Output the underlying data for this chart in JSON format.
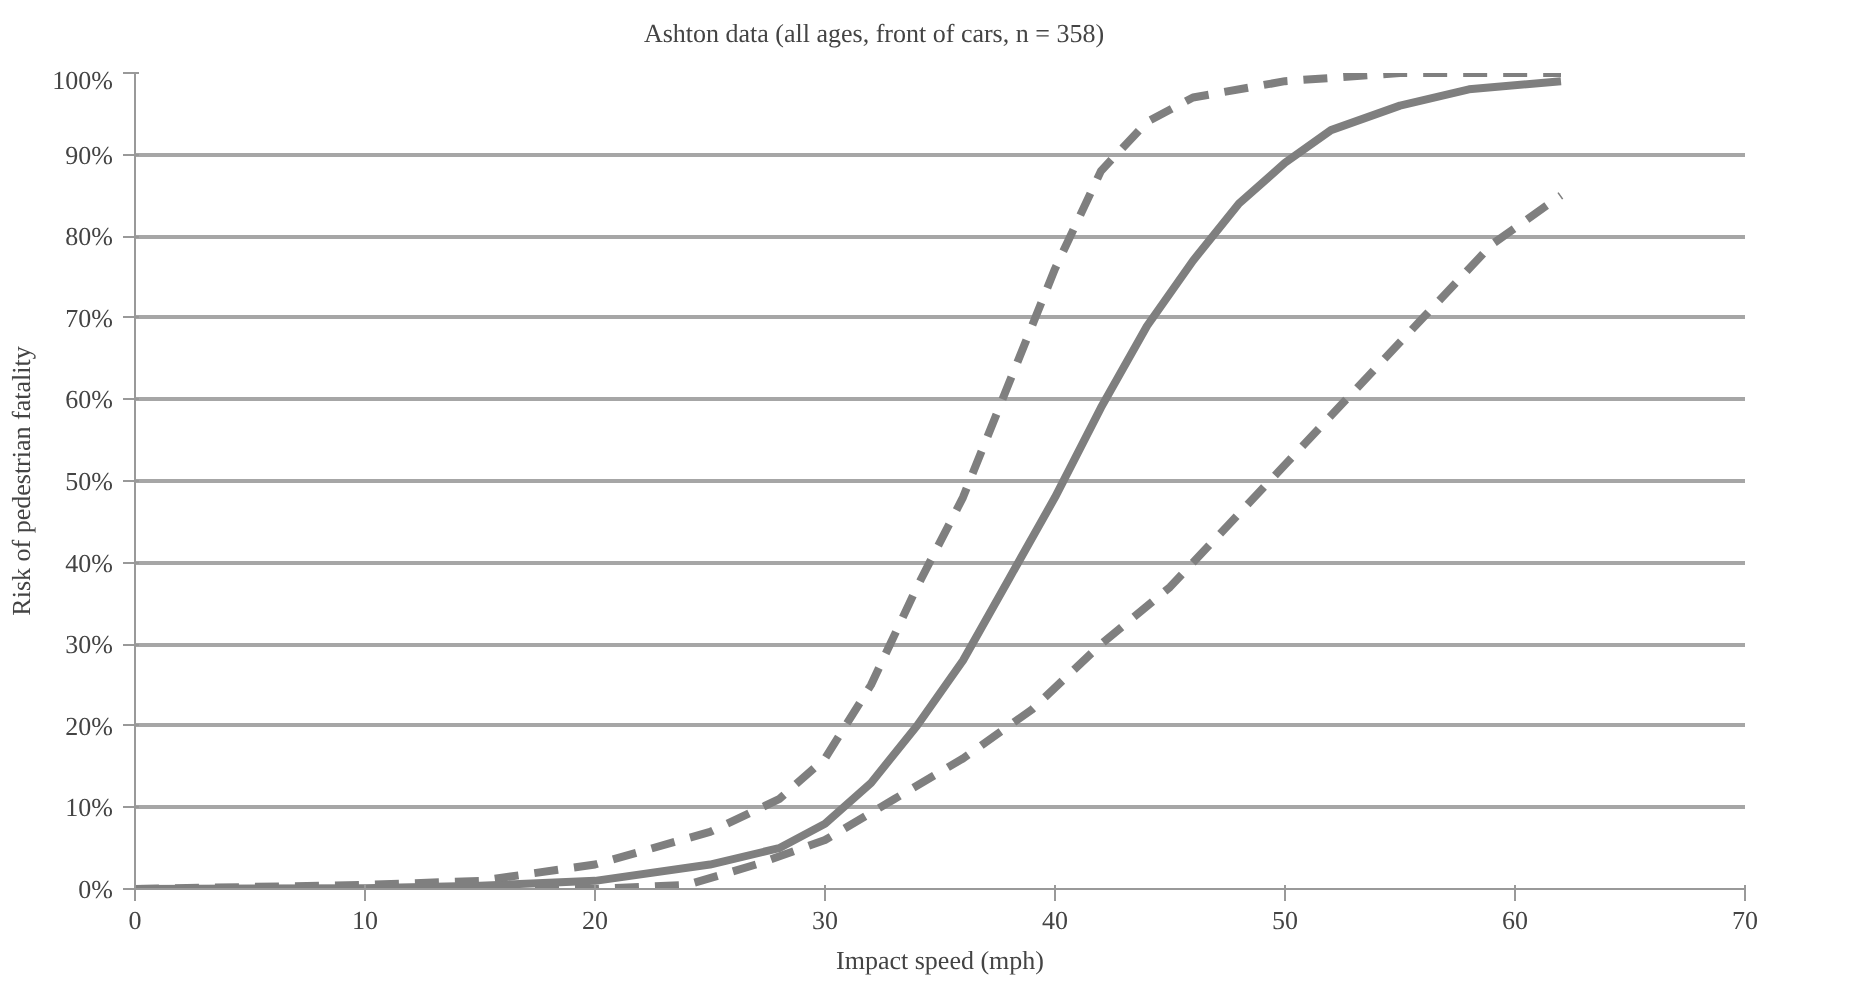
{
  "chart_data": {
    "type": "line",
    "xlabel": "Impact speed (mph)",
    "ylabel": "Risk of pedestrian fatality",
    "xlim": [
      0,
      70
    ],
    "xticks": [
      0,
      10,
      20,
      30,
      40,
      50,
      60,
      70
    ],
    "ylim": [
      0,
      100
    ],
    "yticks": [
      {
        "value": 0,
        "label": "0%"
      },
      {
        "value": 10,
        "label": "10%"
      },
      {
        "value": 20,
        "label": "20%"
      },
      {
        "value": 30,
        "label": "30%"
      },
      {
        "value": 40,
        "label": "40%"
      },
      {
        "value": 50,
        "label": "50%"
      },
      {
        "value": 60,
        "label": "60%"
      },
      {
        "value": 70,
        "label": "70%"
      },
      {
        "value": 80,
        "label": "80%"
      },
      {
        "value": 90,
        "label": "90%"
      },
      {
        "value": 100,
        "label": "100%"
      }
    ],
    "grid": "y",
    "legend": "top",
    "marker": "none",
    "series": [
      {
        "name": "Ashton data (all ages, front of cars, n = 358)",
        "color": "#7f7f7f",
        "line_style": "solid",
        "x": [
          0,
          10,
          15,
          20,
          25,
          28,
          30,
          32,
          34,
          36,
          38,
          40,
          42,
          44,
          46,
          48,
          50,
          52,
          55,
          58,
          62
        ],
        "values": [
          0,
          0.1,
          0.4,
          1,
          3,
          5,
          8,
          13,
          20,
          28,
          38,
          48,
          59,
          69,
          77,
          84,
          89,
          93,
          96,
          98,
          99
        ]
      },
      {
        "color": "#7f7f7f",
        "line_style": "dashed",
        "x": [
          0,
          10,
          15,
          20,
          25,
          28,
          30,
          32,
          34,
          36,
          38,
          40,
          42,
          44,
          46,
          50,
          55,
          62
        ],
        "values": [
          0,
          0.5,
          1,
          3,
          7,
          11,
          16,
          25,
          37,
          48,
          62,
          76,
          88,
          94,
          97,
          99,
          100,
          100
        ]
      },
      {
        "color": "#7f7f7f",
        "line_style": "dashed",
        "x": [
          0,
          10,
          20,
          24,
          27,
          30,
          33,
          36,
          39,
          42,
          45,
          48,
          50,
          53,
          56,
          59,
          62
        ],
        "values": [
          0,
          0,
          0,
          0.5,
          3,
          6,
          11,
          16,
          22,
          30,
          37,
          46,
          52,
          61,
          70,
          79,
          85
        ]
      }
    ]
  }
}
